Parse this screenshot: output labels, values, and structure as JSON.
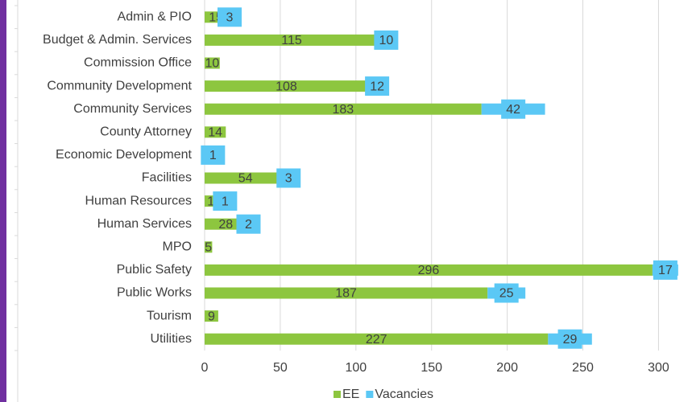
{
  "chart_data": {
    "type": "stacked_bar_horizontal",
    "categories": [
      "Admin & PIO",
      "Budget & Admin. Services",
      "Commission Office",
      "Community Development",
      "Community Services",
      "County Attorney",
      "Economic Development",
      "Facilities",
      "Human Resources",
      "Human Services",
      "MPO",
      "Public Safety",
      "Public Works",
      "Tourism",
      "Utilities"
    ],
    "series": [
      {
        "name": "EE",
        "color": "#8dc63f",
        "values": [
          15,
          115,
          10,
          108,
          183,
          14,
          5,
          54,
          13,
          28,
          5,
          296,
          187,
          9,
          227
        ]
      },
      {
        "name": "Vacancies",
        "color": "#5bc8f5",
        "values": [
          3,
          10,
          null,
          12,
          42,
          null,
          1,
          3,
          1,
          2,
          null,
          17,
          25,
          null,
          29
        ]
      }
    ],
    "xlim": [
      0,
      320
    ],
    "xticks": [
      0,
      50,
      100,
      150,
      200,
      250,
      300
    ],
    "grid": true,
    "legend": "bottom"
  }
}
